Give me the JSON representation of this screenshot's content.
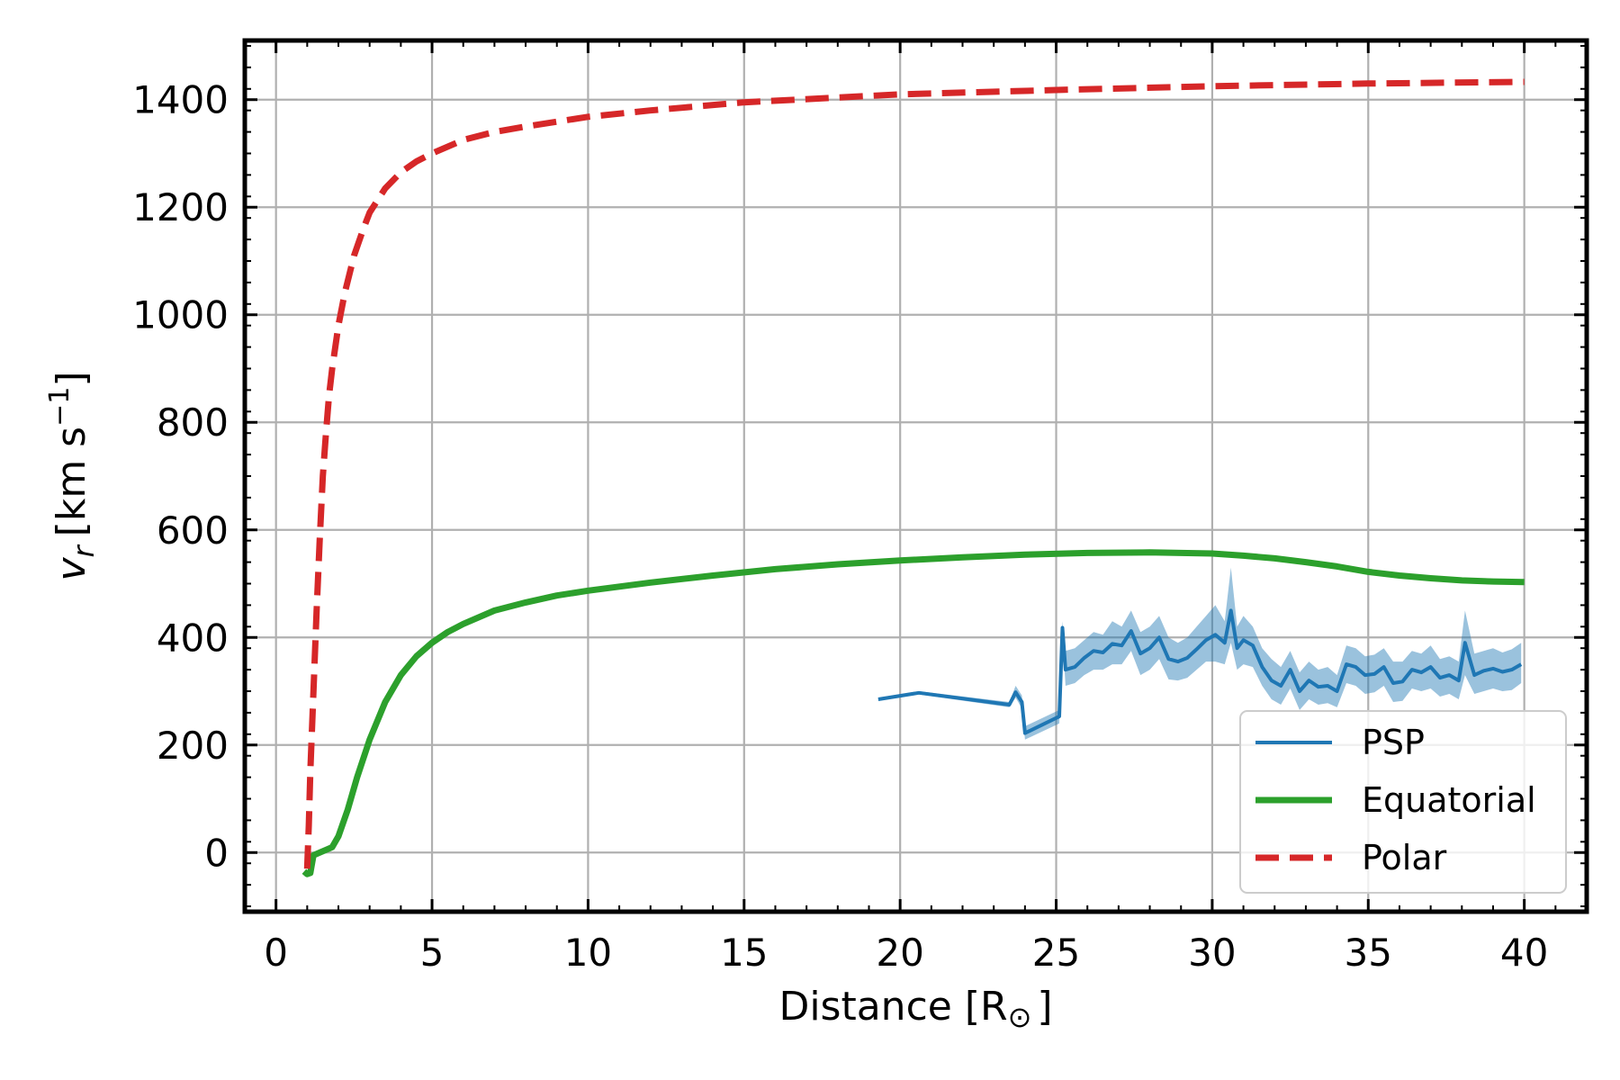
{
  "chart_data": {
    "type": "line",
    "xlabel": "Distance [R",
    "xlabel_symbol": "⊙",
    "xlabel_close": "]",
    "ylabel_var": "v",
    "ylabel_sub": "r",
    "ylabel_unit": "[km s",
    "ylabel_exp": "−1",
    "ylabel_close": "]",
    "xlim": [
      -1,
      42
    ],
    "ylim": [
      -110,
      1510
    ],
    "xticks": [
      0,
      5,
      10,
      15,
      20,
      25,
      30,
      35,
      40
    ],
    "yticks": [
      0,
      200,
      400,
      600,
      800,
      1000,
      1200,
      1400
    ],
    "grid": true,
    "legend_position": "lower-right",
    "colors": {
      "psp": "#1f77b4",
      "equatorial": "#2ca02c",
      "polar": "#d62728",
      "grid": "#b0b0b0"
    },
    "series": [
      {
        "name": "PSP",
        "style": "solid",
        "x": [
          19.3,
          20.6,
          23.5,
          23.7,
          23.9,
          24.0,
          25.1,
          25.2,
          25.3,
          25.6,
          25.9,
          26.2,
          26.5,
          26.8,
          27.1,
          27.4,
          27.7,
          28.0,
          28.3,
          28.6,
          28.9,
          29.2,
          29.5,
          29.8,
          30.1,
          30.4,
          30.6,
          30.8,
          31.0,
          31.3,
          31.6,
          31.9,
          32.2,
          32.5,
          32.8,
          33.1,
          33.4,
          33.7,
          34.0,
          34.3,
          34.6,
          34.9,
          35.2,
          35.5,
          35.8,
          36.1,
          36.4,
          36.7,
          37.0,
          37.3,
          37.6,
          37.9,
          38.1,
          38.4,
          38.7,
          39.0,
          39.3,
          39.6,
          39.9
        ],
        "y": [
          285,
          297,
          275,
          298,
          280,
          222,
          253,
          418,
          340,
          345,
          362,
          375,
          372,
          388,
          385,
          412,
          370,
          380,
          400,
          360,
          355,
          362,
          378,
          395,
          405,
          390,
          450,
          380,
          395,
          385,
          345,
          320,
          310,
          340,
          300,
          320,
          308,
          310,
          300,
          350,
          345,
          330,
          332,
          345,
          315,
          318,
          340,
          335,
          345,
          325,
          330,
          320,
          390,
          330,
          338,
          342,
          336,
          340,
          350
        ],
        "band_upper": [
          288,
          300,
          280,
          310,
          292,
          235,
          265,
          430,
          375,
          380,
          395,
          410,
          405,
          430,
          420,
          450,
          410,
          420,
          440,
          400,
          390,
          400,
          420,
          440,
          460,
          430,
          530,
          420,
          440,
          420,
          380,
          360,
          345,
          375,
          335,
          355,
          340,
          345,
          330,
          385,
          380,
          365,
          368,
          380,
          355,
          355,
          375,
          370,
          385,
          360,
          365,
          355,
          450,
          370,
          375,
          380,
          372,
          378,
          390
        ],
        "band_lower": [
          282,
          294,
          270,
          288,
          268,
          210,
          240,
          405,
          310,
          315,
          330,
          340,
          340,
          350,
          350,
          375,
          330,
          340,
          360,
          322,
          320,
          325,
          340,
          355,
          355,
          350,
          390,
          340,
          350,
          345,
          310,
          285,
          275,
          305,
          265,
          285,
          275,
          278,
          270,
          315,
          310,
          295,
          298,
          310,
          280,
          282,
          305,
          300,
          305,
          290,
          295,
          285,
          330,
          295,
          300,
          305,
          300,
          302,
          315
        ]
      },
      {
        "name": "Equatorial",
        "style": "solid",
        "x": [
          0.9,
          1.0,
          1.1,
          1.2,
          1.4,
          1.6,
          1.8,
          2.0,
          2.3,
          2.6,
          3.0,
          3.5,
          4.0,
          4.5,
          5.0,
          5.5,
          6.0,
          7.0,
          8.0,
          9.0,
          10.0,
          12.0,
          14.0,
          16.0,
          18.0,
          20.0,
          22.0,
          24.0,
          26.0,
          28.0,
          30.0,
          31.0,
          32.0,
          33.0,
          34.0,
          35.0,
          36.0,
          37.0,
          38.0,
          39.0,
          40.0
        ],
        "y": [
          -35,
          -40,
          -38,
          -5,
          0,
          5,
          10,
          30,
          80,
          140,
          210,
          280,
          330,
          365,
          390,
          410,
          425,
          450,
          465,
          478,
          487,
          502,
          515,
          527,
          536,
          543,
          549,
          554,
          557,
          558,
          556,
          552,
          547,
          540,
          532,
          522,
          515,
          510,
          506,
          504,
          503
        ]
      },
      {
        "name": "Polar",
        "style": "dashed",
        "x": [
          1.0,
          1.05,
          1.1,
          1.2,
          1.3,
          1.4,
          1.5,
          1.6,
          1.7,
          1.8,
          2.0,
          2.2,
          2.5,
          2.8,
          3.0,
          3.5,
          4.0,
          4.5,
          5.0,
          6.0,
          7.0,
          8.0,
          10.0,
          12.0,
          15.0,
          20.0,
          25.0,
          30.0,
          35.0,
          40.0
        ],
        "y": [
          -30,
          50,
          150,
          300,
          450,
          580,
          700,
          780,
          850,
          900,
          980,
          1040,
          1110,
          1160,
          1190,
          1235,
          1265,
          1285,
          1300,
          1325,
          1340,
          1350,
          1368,
          1380,
          1395,
          1410,
          1418,
          1425,
          1430,
          1433
        ]
      }
    ]
  }
}
